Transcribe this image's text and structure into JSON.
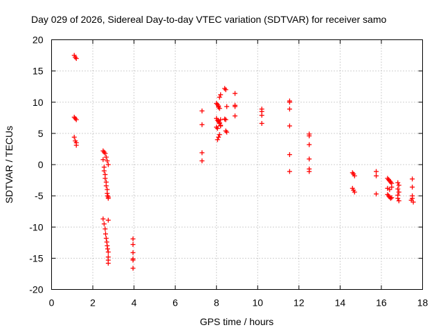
{
  "chart_data": {
    "type": "scatter",
    "title": "Day 029 of 2026, Sidereal Day-to-day VTEC variation (SDTVAR) for receiver samo",
    "xlabel": "GPS time / hours",
    "ylabel": "SDTVAR / TECUs",
    "xlim": [
      0,
      18
    ],
    "ylim": [
      -20,
      20
    ],
    "xticks": [
      0,
      2,
      4,
      6,
      8,
      10,
      12,
      14,
      16,
      18
    ],
    "yticks": [
      -20,
      -15,
      -10,
      -5,
      0,
      5,
      10,
      15,
      20
    ],
    "grid": true,
    "marker": "plus",
    "color": "#ff0000",
    "series": [
      {
        "name": "SDTVAR",
        "x": [
          1.1,
          1.15,
          1.2,
          1.1,
          1.15,
          1.2,
          1.1,
          1.15,
          1.2,
          1.2,
          2.5,
          2.55,
          2.6,
          2.65,
          2.7,
          2.75,
          2.5,
          2.55,
          2.6,
          2.65,
          2.7,
          2.75,
          2.55,
          2.6,
          2.65,
          2.7,
          2.72,
          2.75,
          2.5,
          2.55,
          2.6,
          2.62,
          2.65,
          2.68,
          2.7,
          2.72,
          2.75,
          2.75,
          2.75,
          2.75,
          2.75,
          3.95,
          3.95,
          3.95,
          3.95,
          3.95,
          3.95,
          7.3,
          7.3,
          7.3,
          7.3,
          8.0,
          8.05,
          8.1,
          8.15,
          8.2,
          8.0,
          8.05,
          8.1,
          8.15,
          8.2,
          8.05,
          8.1,
          8.15,
          8.2,
          8.0,
          8.05,
          8.1,
          8.15,
          8.2,
          8.1,
          8.15,
          8.4,
          8.45,
          8.5,
          8.4,
          8.45,
          8.5,
          8.45,
          8.9,
          8.9,
          8.9,
          8.9,
          10.2,
          10.2,
          10.2,
          10.2,
          11.55,
          11.55,
          11.55,
          11.55,
          11.55,
          11.55,
          12.5,
          12.5,
          12.5,
          12.5,
          12.5,
          12.5,
          14.6,
          14.65,
          14.7,
          14.6,
          14.65,
          14.7,
          15.75,
          15.75,
          15.75,
          16.3,
          16.35,
          16.4,
          16.45,
          16.5,
          16.3,
          16.35,
          16.4,
          16.45,
          16.5,
          16.3,
          16.4,
          16.5,
          16.8,
          16.85,
          16.8,
          16.85,
          16.8,
          16.85,
          16.8,
          17.5,
          17.5,
          17.5,
          17.5,
          17.45,
          17.55
        ],
        "y": [
          17.5,
          17.2,
          17.0,
          7.6,
          7.4,
          7.2,
          4.4,
          3.8,
          3.5,
          3.1,
          2.2,
          2.0,
          1.8,
          1.2,
          0.6,
          0.0,
          0.8,
          -0.4,
          -1.6,
          -2.8,
          -4.0,
          -5.2,
          -1.0,
          -2.2,
          -3.4,
          -4.6,
          -5.0,
          -5.4,
          -8.7,
          -9.5,
          -10.3,
          -11.1,
          -11.8,
          -12.4,
          -13.0,
          -13.5,
          -14.0,
          -14.8,
          -15.3,
          -15.8,
          -8.9,
          -11.9,
          -12.8,
          -14.1,
          -15.1,
          -15.3,
          -16.6,
          8.6,
          6.4,
          1.9,
          0.6,
          9.8,
          9.6,
          9.4,
          10.8,
          11.2,
          7.4,
          7.1,
          6.9,
          6.6,
          6.2,
          4.0,
          4.4,
          4.8,
          7.2,
          6.0,
          5.8,
          7.0,
          6.7,
          6.3,
          9.2,
          9.0,
          12.2,
          12.0,
          9.3,
          7.3,
          7.2,
          5.2,
          5.4,
          11.4,
          9.5,
          9.3,
          7.8,
          8.9,
          8.5,
          7.9,
          6.6,
          10.2,
          10.0,
          8.9,
          6.2,
          1.6,
          -1.1,
          4.9,
          4.6,
          3.2,
          0.9,
          -0.7,
          -1.1,
          -1.3,
          -1.5,
          -1.8,
          -3.8,
          -4.1,
          -4.4,
          -1.1,
          -1.8,
          -4.7,
          -2.2,
          -2.4,
          -2.6,
          -2.8,
          -3.0,
          -4.8,
          -5.0,
          -5.2,
          -5.4,
          -3.6,
          -3.8,
          -4.0,
          -5.3,
          -2.9,
          -3.3,
          -3.9,
          -4.4,
          -5.4,
          -5.8,
          -4.9,
          -2.3,
          -3.6,
          -5.0,
          -5.4,
          -5.7,
          -6.0
        ]
      }
    ]
  }
}
